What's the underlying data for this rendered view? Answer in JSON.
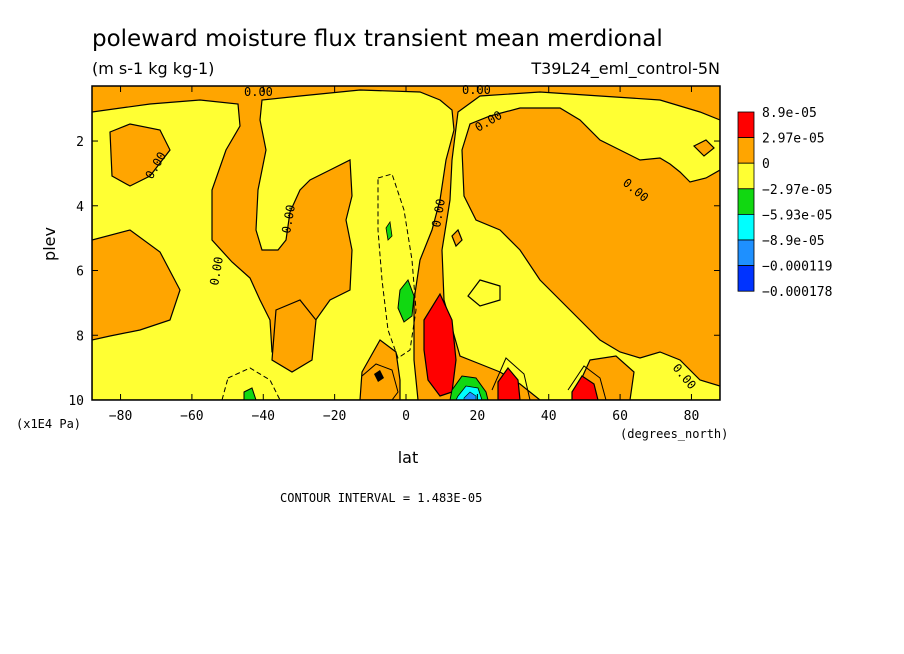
{
  "chart_data": {
    "type": "heatmap",
    "title": "poleward moisture flux transient mean merdional",
    "units": "(m s-1 kg kg-1)",
    "dataset": "T39L24_eml_control-5N",
    "xlabel": "lat",
    "x_units": "(degrees_north)",
    "ylabel": "plev",
    "y_units": "(x1E4 Pa)",
    "xlim": [
      -88,
      88
    ],
    "ylim": [
      10,
      0.3
    ],
    "x_ticks": [
      -80,
      -60,
      -40,
      -20,
      0,
      20,
      40,
      60,
      80
    ],
    "y_ticks": [
      2,
      4,
      6,
      8,
      10
    ],
    "contour_interval_text": "CONTOUR INTERVAL = 1.483E-05",
    "contour_labels": [
      "0.00"
    ],
    "legend": {
      "placement": "right",
      "labels": [
        "8.9e-05",
        "2.97e-05",
        "0",
        "-2.97e-05",
        "-5.93e-05",
        "-8.9e-05",
        "-0.000119",
        "-0.000178"
      ],
      "colors": [
        "#ff0000",
        "#ffa500",
        "#ffff33",
        "#11d811",
        "#00ffff",
        "#1e90ff",
        "#0033ff"
      ]
    },
    "palette": {
      "red": "#ff0000",
      "orange": "#ffa500",
      "yellow": "#ffff33",
      "green": "#11d811",
      "cyan": "#00ffff",
      "blue": "#1e90ff",
      "darkblue": "#0033ff"
    }
  }
}
